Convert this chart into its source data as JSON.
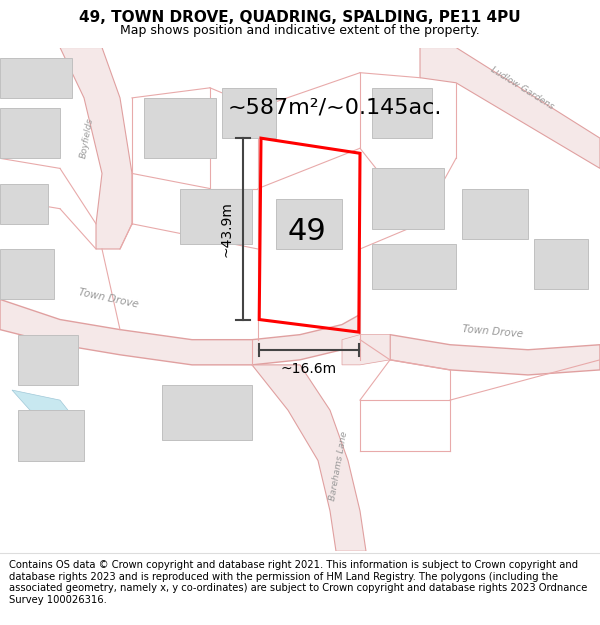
{
  "title": "49, TOWN DROVE, QUADRING, SPALDING, PE11 4PU",
  "subtitle": "Map shows position and indicative extent of the property.",
  "footer": "Contains OS data © Crown copyright and database right 2021. This information is subject to Crown copyright and database rights 2023 and is reproduced with the permission of HM Land Registry. The polygons (including the associated geometry, namely x, y co-ordinates) are subject to Crown copyright and database rights 2023 Ordnance Survey 100026316.",
  "area_label": "~587m²/~0.145ac.",
  "height_label": "~43.9m",
  "width_label": "~16.6m",
  "number_label": "49",
  "map_bg": "#f7f7f7",
  "road_fill": "#f5e8e8",
  "road_edge": "#e0a0a0",
  "boundary_color": "#e8aaaa",
  "building_fill": "#d8d8d8",
  "building_edge": "#c0c0c0",
  "plot_color": "#ff0000",
  "road_label_color": "#999999",
  "dim_color": "#444444",
  "title_fontsize": 11,
  "subtitle_fontsize": 9,
  "footer_fontsize": 7.2,
  "area_fontsize": 16,
  "dim_fontsize": 10,
  "number_fontsize": 22
}
